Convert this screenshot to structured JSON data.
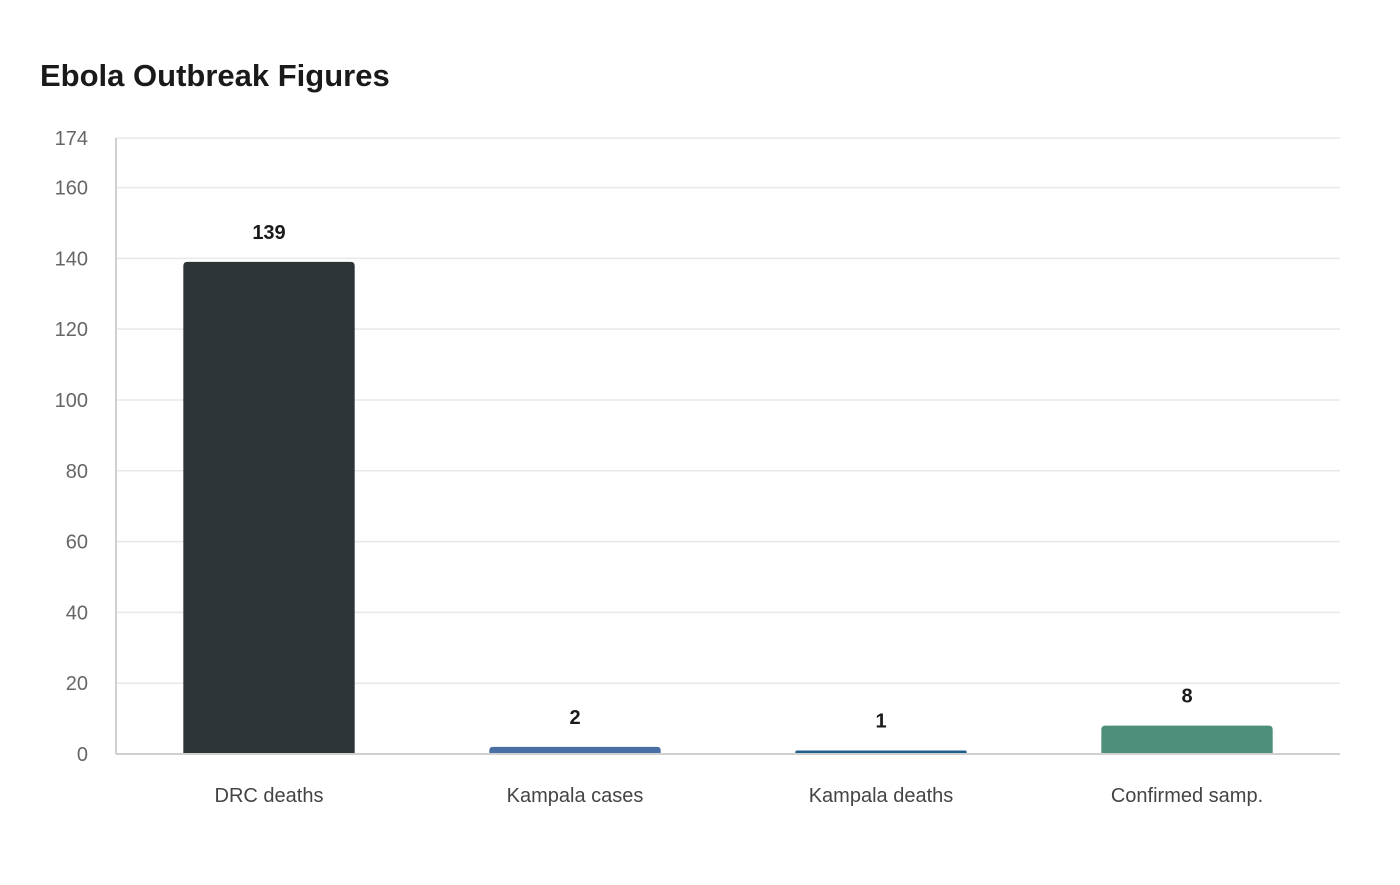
{
  "chart_data": {
    "type": "bar",
    "title": "Ebola Outbreak Figures",
    "xlabel": "",
    "ylabel": "",
    "categories": [
      "DRC deaths",
      "Kampala cases",
      "Kampala deaths",
      "Confirmed samp."
    ],
    "values": [
      139,
      2,
      1,
      8
    ],
    "colors": [
      "#2d3436",
      "#4a6fa5",
      "#1f5f8b",
      "#4e8f7c"
    ],
    "ylim": [
      0,
      174
    ],
    "yticks": [
      0,
      20,
      40,
      60,
      80,
      100,
      120,
      140,
      160,
      174
    ],
    "grid": true,
    "legend": "none"
  }
}
